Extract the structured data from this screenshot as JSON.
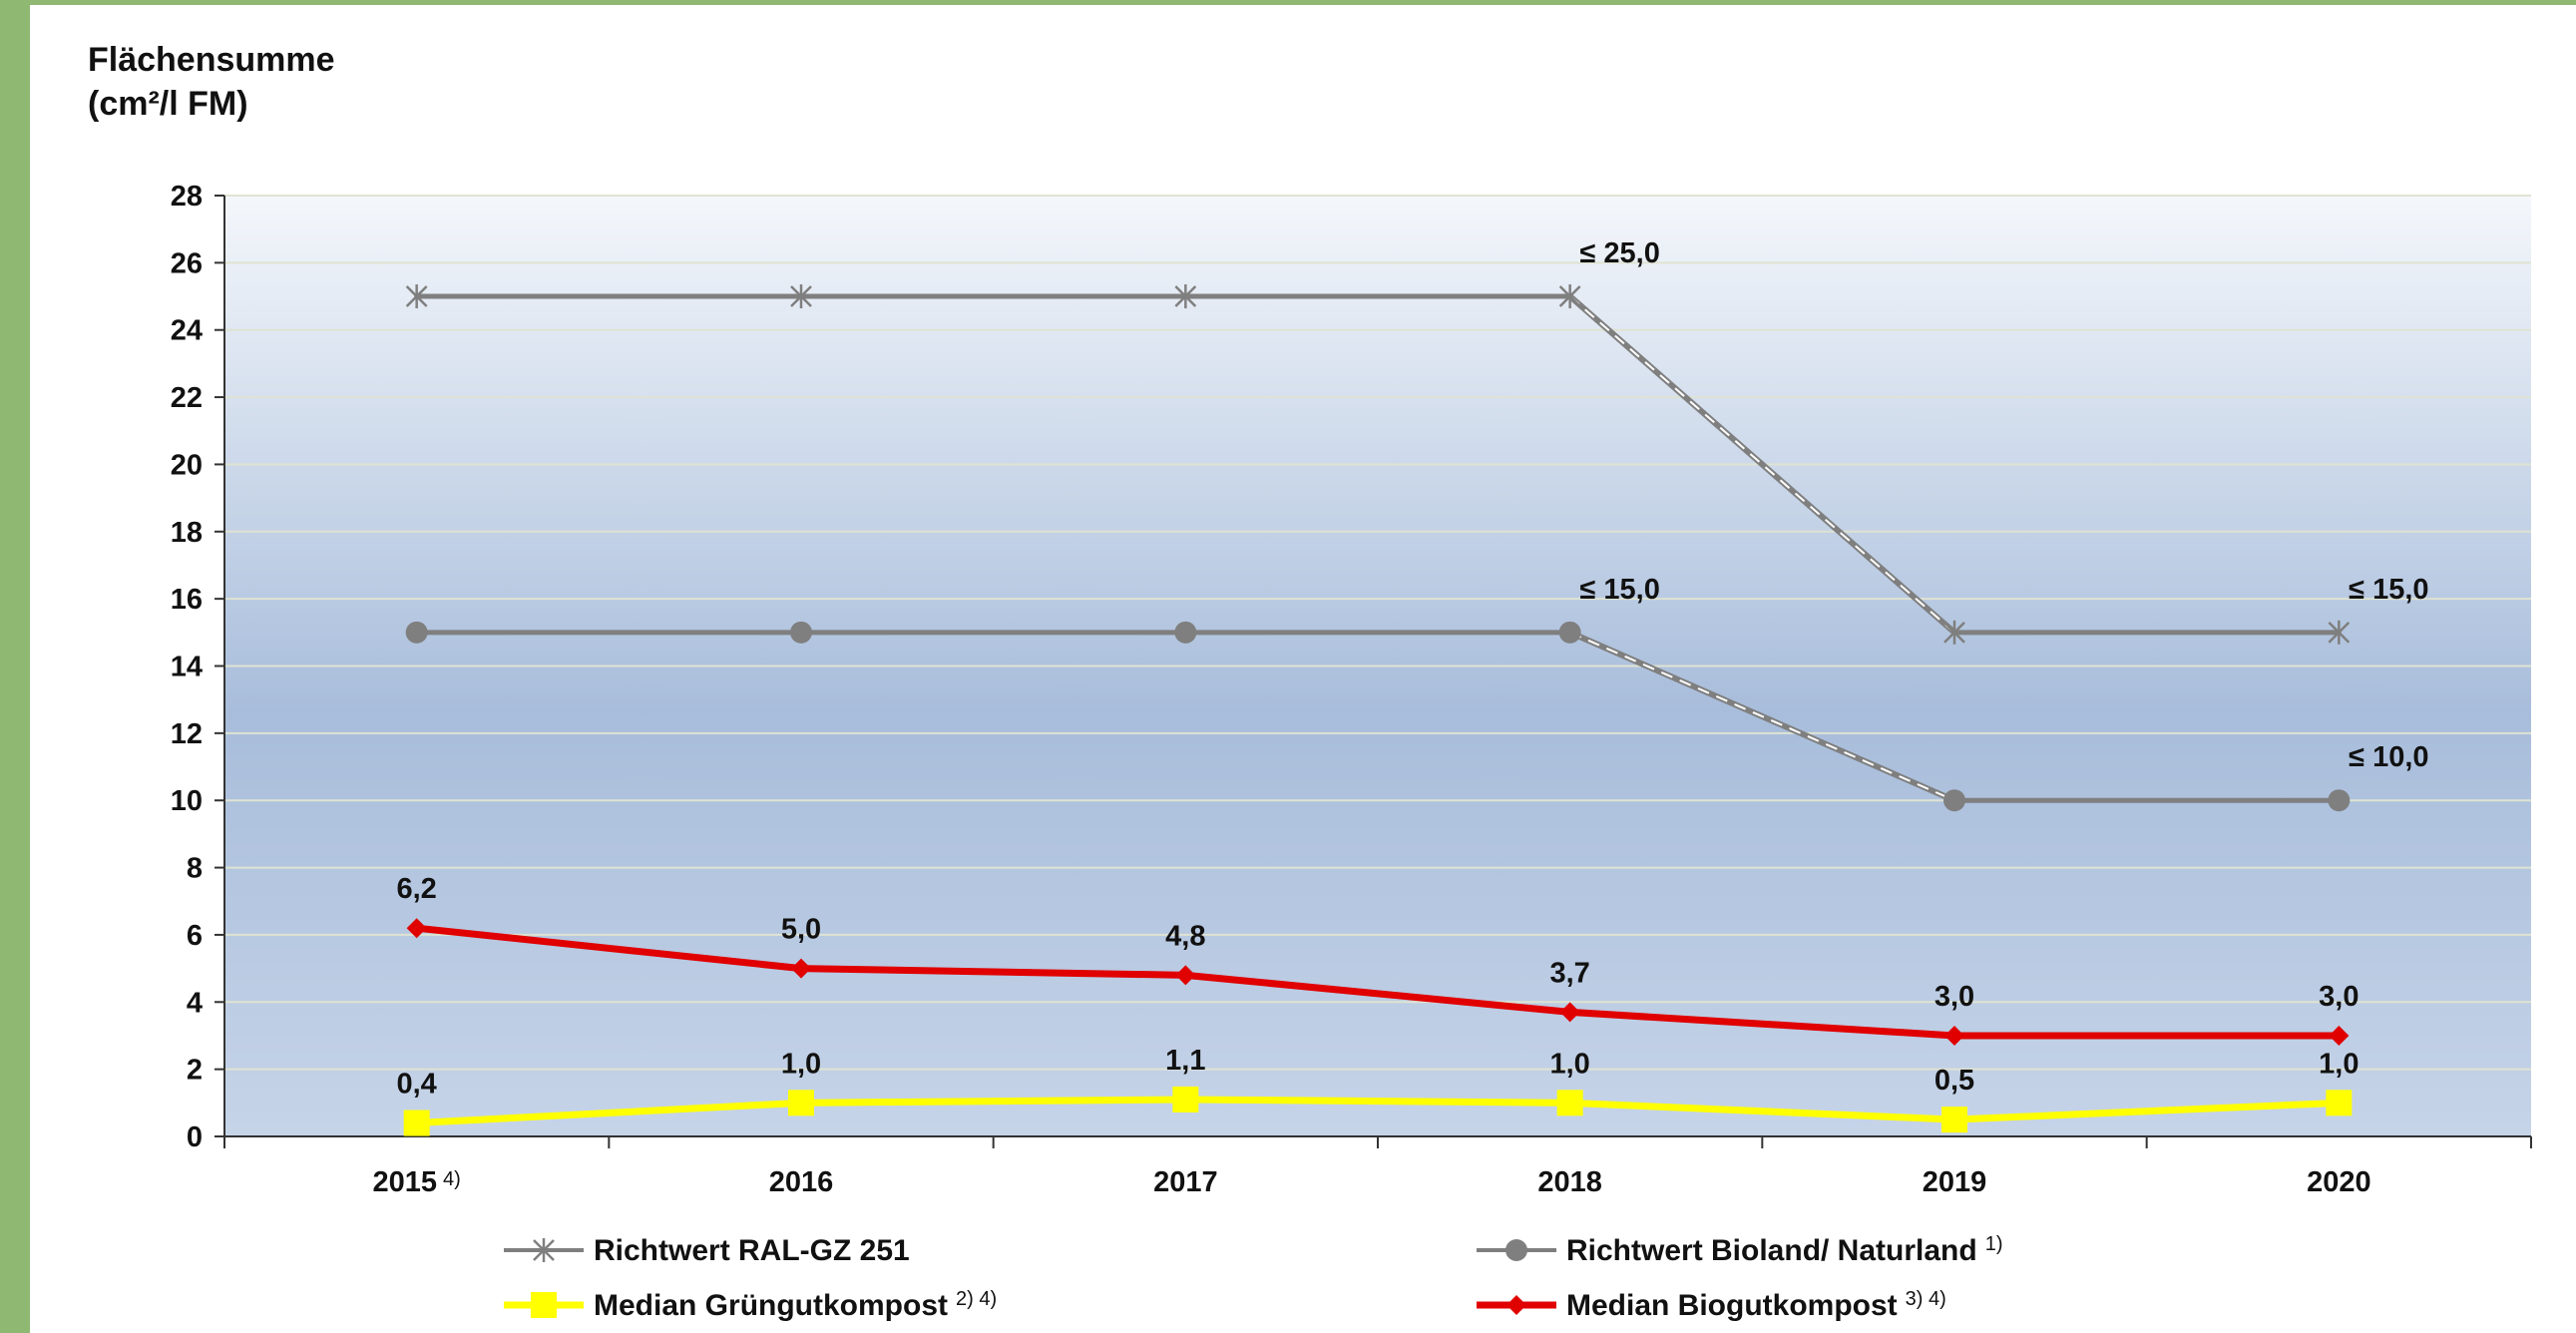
{
  "chart_data": {
    "type": "line",
    "ylabel_line1": "Flächensumme",
    "ylabel_line2": "(cm²/l FM)",
    "categories": [
      "2015",
      "2016",
      "2017",
      "2018",
      "2019",
      "2020"
    ],
    "category_notes": [
      "4)",
      "",
      "",
      "",
      "",
      ""
    ],
    "ylim": [
      0,
      28
    ],
    "yticks": [
      "0",
      "2",
      "4",
      "6",
      "8",
      "10",
      "12",
      "14",
      "16",
      "18",
      "20",
      "22",
      "24",
      "26",
      "28"
    ],
    "grid": true,
    "legend_position": "bottom",
    "series": [
      {
        "name": "Richtwert RAL-GZ 251",
        "note": "",
        "values": [
          25,
          25,
          25,
          25,
          15,
          15
        ],
        "color": "#7f7f7f",
        "marker": "asterisk"
      },
      {
        "name": "Richtwert Bioland/ Naturland",
        "note": "1)",
        "values": [
          15,
          15,
          15,
          15,
          10,
          10
        ],
        "color": "#7f7f7f",
        "marker": "circle"
      },
      {
        "name": "Median Grüngutkompost",
        "note": "2) 4)",
        "values": [
          0.4,
          1.0,
          1.1,
          1.0,
          0.5,
          1.0
        ],
        "color": "#ffff00",
        "marker": "square"
      },
      {
        "name": "Median Biogutkompost",
        "note": "3) 4)",
        "values": [
          6.2,
          5.0,
          4.8,
          3.7,
          3.0,
          3.0
        ],
        "color": "#e00000",
        "marker": "diamond"
      }
    ],
    "data_labels": {
      "Median Biogutkompost": [
        "6,2",
        "5,0",
        "4,8",
        "3,7",
        "3,0",
        "3,0"
      ],
      "Median Grüngutkompost": [
        "0,4",
        "1,0",
        "1,1",
        "1,0",
        "0,5",
        "1,0"
      ]
    },
    "annotations": [
      "≤ 25,0",
      "≤ 15,0",
      "≤ 15,0",
      "≤ 10,0"
    ]
  }
}
